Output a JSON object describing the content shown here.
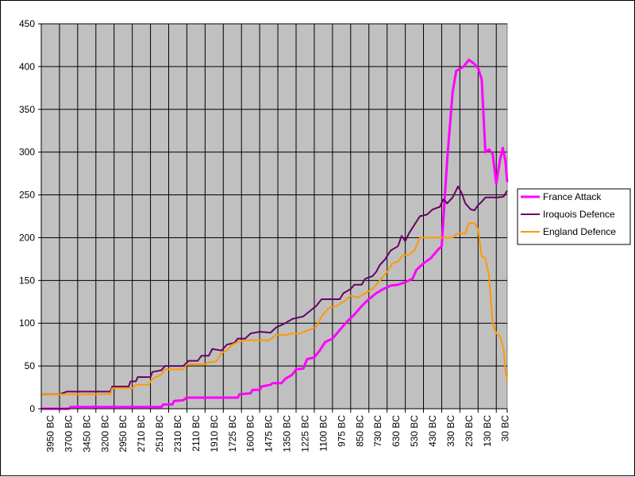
{
  "chart_data": {
    "type": "line",
    "title": "",
    "xlabel": "",
    "ylabel": "",
    "ylim": [
      0,
      450
    ],
    "y_ticks": [
      0,
      50,
      100,
      150,
      200,
      250,
      300,
      350,
      400,
      450
    ],
    "grid": "on",
    "legend_position": "right",
    "plot_background": "#c0c0c0",
    "x_tick_labels": [
      "3950 BC",
      "3700 BC",
      "3450 BC",
      "3200 BC",
      "2950 BC",
      "2710 BC",
      "2510 BC",
      "2310 BC",
      "2110 BC",
      "1910 BC",
      "1725 BC",
      "1600 BC",
      "1475 BC",
      "1350 BC",
      "1225 BC",
      "1100 BC",
      "975 BC",
      "850 BC",
      "730 BC",
      "630 BC",
      "530 BC",
      "430 BC",
      "330 BC",
      "230 BC",
      "130 BC",
      "30 BC"
    ],
    "x_range": [
      0,
      25.6
    ],
    "series": [
      {
        "name": "France Attack",
        "color": "#ff00ff",
        "width": 3,
        "points": [
          [
            0,
            0
          ],
          [
            1.5,
            0
          ],
          [
            1.6,
            2
          ],
          [
            4.5,
            2
          ],
          [
            6.6,
            2
          ],
          [
            6.7,
            5
          ],
          [
            7.2,
            5
          ],
          [
            7.3,
            9
          ],
          [
            7.8,
            10
          ],
          [
            8.0,
            13
          ],
          [
            9.5,
            13
          ],
          [
            10.8,
            13
          ],
          [
            10.9,
            17
          ],
          [
            11.5,
            18
          ],
          [
            11.6,
            22
          ],
          [
            12.0,
            22
          ],
          [
            12.1,
            26
          ],
          [
            12.6,
            28
          ],
          [
            12.7,
            30
          ],
          [
            13.2,
            30
          ],
          [
            13.4,
            35
          ],
          [
            13.8,
            40
          ],
          [
            14.0,
            46
          ],
          [
            14.4,
            47
          ],
          [
            14.6,
            58
          ],
          [
            15.0,
            60
          ],
          [
            15.3,
            68
          ],
          [
            15.6,
            78
          ],
          [
            16.0,
            82
          ],
          [
            16.4,
            92
          ],
          [
            16.8,
            102
          ],
          [
            17.2,
            110
          ],
          [
            17.6,
            120
          ],
          [
            18.0,
            128
          ],
          [
            18.4,
            135
          ],
          [
            18.8,
            140
          ],
          [
            19.2,
            144
          ],
          [
            19.6,
            145
          ],
          [
            20.0,
            148
          ],
          [
            20.4,
            152
          ],
          [
            20.6,
            162
          ],
          [
            21.0,
            170
          ],
          [
            21.4,
            176
          ],
          [
            21.8,
            186
          ],
          [
            22.0,
            190
          ],
          [
            22.3,
            290
          ],
          [
            22.6,
            370
          ],
          [
            22.8,
            395
          ],
          [
            23.2,
            400
          ],
          [
            23.5,
            408
          ],
          [
            23.8,
            403
          ],
          [
            24.0,
            398
          ],
          [
            24.2,
            385
          ],
          [
            24.4,
            300
          ],
          [
            24.6,
            303
          ],
          [
            24.8,
            298
          ],
          [
            25.0,
            263
          ],
          [
            25.2,
            290
          ],
          [
            25.35,
            305
          ],
          [
            25.5,
            290
          ],
          [
            25.6,
            265
          ]
        ]
      },
      {
        "name": "Iroquois Defence",
        "color": "#660066",
        "width": 2,
        "points": [
          [
            0,
            17
          ],
          [
            1.0,
            17
          ],
          [
            1.4,
            20
          ],
          [
            3.8,
            20
          ],
          [
            3.9,
            26
          ],
          [
            4.8,
            26
          ],
          [
            4.9,
            32
          ],
          [
            5.2,
            32
          ],
          [
            5.3,
            37
          ],
          [
            6.0,
            37
          ],
          [
            6.1,
            43
          ],
          [
            6.6,
            45
          ],
          [
            6.8,
            50
          ],
          [
            7.8,
            50
          ],
          [
            8.1,
            56
          ],
          [
            8.6,
            56
          ],
          [
            8.8,
            62
          ],
          [
            9.2,
            62
          ],
          [
            9.4,
            70
          ],
          [
            9.9,
            68
          ],
          [
            10.2,
            75
          ],
          [
            10.6,
            77
          ],
          [
            10.8,
            82
          ],
          [
            11.2,
            82
          ],
          [
            11.5,
            88
          ],
          [
            12.0,
            90
          ],
          [
            12.6,
            89
          ],
          [
            12.9,
            95
          ],
          [
            13.4,
            100
          ],
          [
            13.8,
            105
          ],
          [
            14.4,
            108
          ],
          [
            14.8,
            115
          ],
          [
            15.1,
            120
          ],
          [
            15.4,
            128
          ],
          [
            16.4,
            128
          ],
          [
            16.6,
            135
          ],
          [
            17.0,
            140
          ],
          [
            17.2,
            145
          ],
          [
            17.6,
            145
          ],
          [
            17.8,
            152
          ],
          [
            18.2,
            155
          ],
          [
            18.4,
            160
          ],
          [
            18.6,
            168
          ],
          [
            18.9,
            175
          ],
          [
            19.2,
            185
          ],
          [
            19.6,
            190
          ],
          [
            19.8,
            202
          ],
          [
            20.0,
            196
          ],
          [
            20.2,
            205
          ],
          [
            20.5,
            215
          ],
          [
            20.8,
            225
          ],
          [
            21.2,
            227
          ],
          [
            21.5,
            233
          ],
          [
            21.9,
            236
          ],
          [
            22.1,
            245
          ],
          [
            22.3,
            240
          ],
          [
            22.6,
            247
          ],
          [
            22.9,
            260
          ],
          [
            23.1,
            252
          ],
          [
            23.3,
            240
          ],
          [
            23.6,
            233
          ],
          [
            23.8,
            232
          ],
          [
            24.0,
            238
          ],
          [
            24.2,
            242
          ],
          [
            24.4,
            247
          ],
          [
            24.8,
            247
          ],
          [
            25.1,
            247
          ],
          [
            25.4,
            248
          ],
          [
            25.6,
            255
          ]
        ]
      },
      {
        "name": "England Defence",
        "color": "#ff9900",
        "width": 2,
        "points": [
          [
            0,
            17
          ],
          [
            1.0,
            17
          ],
          [
            1.4,
            17
          ],
          [
            3.8,
            17
          ],
          [
            3.9,
            24
          ],
          [
            5.0,
            24
          ],
          [
            5.2,
            28
          ],
          [
            5.9,
            28
          ],
          [
            6.1,
            35
          ],
          [
            6.6,
            40
          ],
          [
            6.8,
            46
          ],
          [
            7.8,
            46
          ],
          [
            8.0,
            52
          ],
          [
            9.0,
            52
          ],
          [
            9.3,
            55
          ],
          [
            9.6,
            55
          ],
          [
            9.9,
            65
          ],
          [
            10.2,
            68
          ],
          [
            10.5,
            75
          ],
          [
            10.8,
            78
          ],
          [
            11.2,
            80
          ],
          [
            12.0,
            80
          ],
          [
            12.5,
            80
          ],
          [
            12.9,
            86
          ],
          [
            13.4,
            86
          ],
          [
            13.8,
            88
          ],
          [
            14.2,
            88
          ],
          [
            14.7,
            92
          ],
          [
            15.1,
            95
          ],
          [
            15.4,
            108
          ],
          [
            15.8,
            118
          ],
          [
            16.2,
            120
          ],
          [
            16.6,
            125
          ],
          [
            17.0,
            132
          ],
          [
            17.4,
            130
          ],
          [
            17.8,
            135
          ],
          [
            18.2,
            140
          ],
          [
            18.6,
            150
          ],
          [
            19.0,
            160
          ],
          [
            19.3,
            170
          ],
          [
            19.6,
            172
          ],
          [
            19.9,
            180
          ],
          [
            20.2,
            180
          ],
          [
            20.5,
            185
          ],
          [
            20.8,
            200
          ],
          [
            21.4,
            200
          ],
          [
            21.8,
            200
          ],
          [
            22.0,
            200
          ],
          [
            22.6,
            200
          ],
          [
            22.9,
            205
          ],
          [
            23.3,
            205
          ],
          [
            23.5,
            217
          ],
          [
            23.8,
            217
          ],
          [
            24.0,
            210
          ],
          [
            24.2,
            178
          ],
          [
            24.4,
            176
          ],
          [
            24.6,
            155
          ],
          [
            24.8,
            100
          ],
          [
            25.0,
            88
          ],
          [
            25.2,
            85
          ],
          [
            25.4,
            70
          ],
          [
            25.5,
            45
          ],
          [
            25.6,
            33
          ]
        ]
      }
    ]
  }
}
